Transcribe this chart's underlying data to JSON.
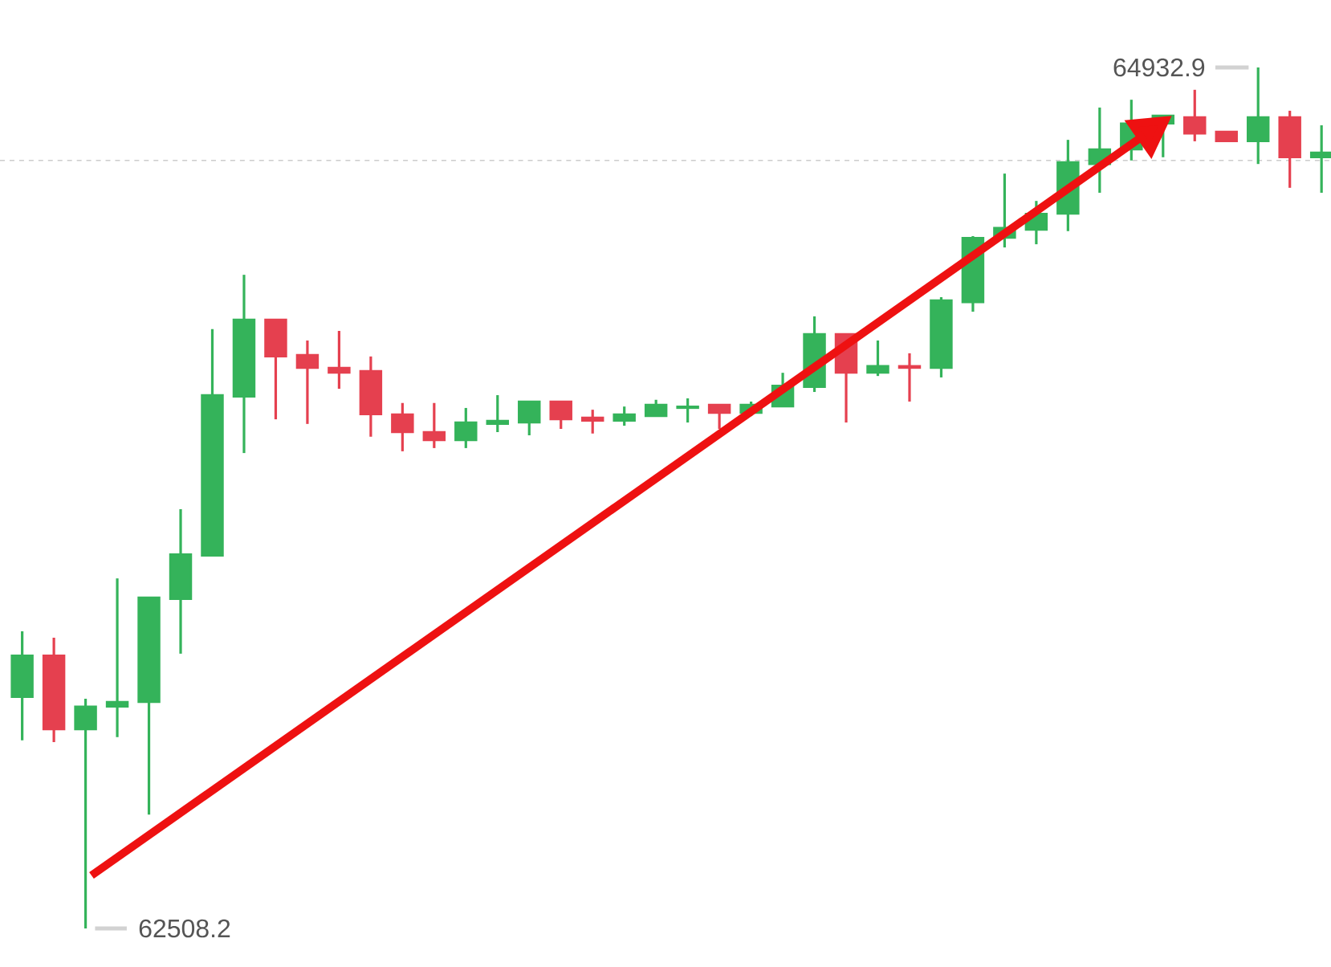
{
  "chart_data": {
    "type": "candlestick",
    "categories": [
      null,
      null,
      null,
      null,
      null,
      null,
      null,
      null,
      null,
      null,
      null,
      null,
      null,
      null,
      null,
      null,
      null,
      null,
      null,
      null,
      null,
      null,
      null,
      null,
      null,
      null,
      null,
      null,
      null,
      null,
      null,
      null,
      null,
      null,
      null,
      null,
      null,
      null,
      null,
      null,
      null,
      null
    ],
    "ohlc": [
      [
        63160,
        63345,
        63038,
        63277
      ],
      [
        63277,
        63327,
        63033,
        63069
      ],
      [
        63069,
        63155,
        62508.2,
        63133
      ],
      [
        63133,
        63494,
        63047,
        63146
      ],
      [
        63146,
        63440,
        62829,
        63440
      ],
      [
        63436,
        63689,
        63282,
        63562
      ],
      [
        63558,
        64196,
        63558,
        64010
      ],
      [
        64006,
        64349,
        63847,
        64223
      ],
      [
        64223,
        64223,
        63942,
        64119
      ],
      [
        64123,
        64164,
        63929,
        64087
      ],
      [
        64087,
        64191,
        64028,
        64073
      ],
      [
        64078,
        64119,
        63893,
        63956
      ],
      [
        63956,
        63988,
        63852,
        63906
      ],
      [
        63906,
        63988,
        63861,
        63883
      ],
      [
        63883,
        63974,
        63861,
        63933
      ],
      [
        63929,
        64010,
        63906,
        63938
      ],
      [
        63933,
        63992,
        63897,
        63992
      ],
      [
        63992,
        63992,
        63915,
        63942
      ],
      [
        63947,
        63969,
        63902,
        63938
      ],
      [
        63938,
        63978,
        63924,
        63956
      ],
      [
        63951,
        63997,
        63951,
        63983
      ],
      [
        63974,
        64001,
        63933,
        63978
      ],
      [
        63983,
        63983,
        63915,
        63960
      ],
      [
        63960,
        63992,
        63951,
        63983
      ],
      [
        63978,
        64073,
        63978,
        64037
      ],
      [
        64033,
        64232,
        64019,
        64182
      ],
      [
        64182,
        64182,
        63933,
        64073
      ],
      [
        64073,
        64164,
        64064,
        64092
      ],
      [
        64092,
        64128,
        63992,
        64087
      ],
      [
        64087,
        64286,
        64060,
        64277
      ],
      [
        64272,
        64458,
        64245,
        64453
      ],
      [
        64453,
        64634,
        64426,
        64481
      ],
      [
        64476,
        64557,
        64435,
        64521
      ],
      [
        64521,
        64729,
        64472,
        64666
      ],
      [
        64661,
        64820,
        64580,
        64702
      ],
      [
        64702,
        64842,
        64671,
        64775
      ],
      [
        64775,
        64797,
        64680,
        64797
      ],
      [
        64793,
        64870,
        64725,
        64747
      ],
      [
        64752,
        64752,
        64725,
        64725
      ],
      [
        64725,
        64932.9,
        64661,
        64793
      ],
      [
        64793,
        64811,
        64594,
        64680
      ],
      [
        64680,
        64770,
        64580,
        64693
      ]
    ],
    "colors": [
      "#34b35a",
      "#e5404f",
      "#34b35a",
      "#34b35a",
      "#34b35a",
      "#34b35a",
      "#34b35a",
      "#34b35a",
      "#e5404f",
      "#e5404f",
      "#e5404f",
      "#e5404f",
      "#e5404f",
      "#e5404f",
      "#34b35a",
      "#34b35a",
      "#34b35a",
      "#e5404f",
      "#e5404f",
      "#34b35a",
      "#34b35a",
      "#34b35a",
      "#e5404f",
      "#34b35a",
      "#34b35a",
      "#34b35a",
      "#e5404f",
      "#34b35a",
      "#e5404f",
      "#34b35a",
      "#34b35a",
      "#34b35a",
      "#34b35a",
      "#34b35a",
      "#34b35a",
      "#34b35a",
      "#34b35a",
      "#e5404f",
      "#e5404f",
      "#34b35a",
      "#e5404f",
      "#34b35a"
    ],
    "ref_lines": [
      {
        "axis": "y",
        "value": 64671,
        "color": "#cccccc",
        "line_style": "dashed"
      }
    ],
    "annotations": [
      "64932.9",
      "62508.2"
    ]
  }
}
